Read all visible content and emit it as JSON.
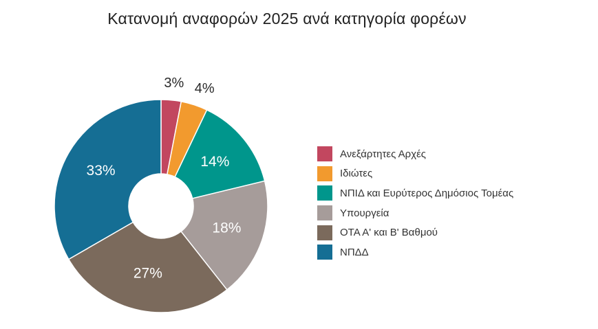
{
  "chart_data": {
    "type": "pie",
    "title": "Κατανομή αναφορών  2025 ανά κατηγορία φορέων",
    "categories": [
      "Ανεξάρτητες Αρχές",
      "Ιδιώτες",
      "ΝΠΙΔ και Ευρύτερος Δημόσιος Τομέας",
      "Υπουργεία",
      "ΟΤΑ Α' και Β' Βαθμού",
      "ΝΠΔΔ"
    ],
    "values": [
      3,
      4,
      14,
      18,
      27,
      33
    ],
    "labels": [
      "3%",
      "4%",
      "14%",
      "18%",
      "27%",
      "33%"
    ],
    "colors": [
      "#c2475f",
      "#f29a2e",
      "#00968c",
      "#a69c9a",
      "#7b6a5c",
      "#156e94"
    ],
    "donut": true,
    "legend_position": "right"
  }
}
